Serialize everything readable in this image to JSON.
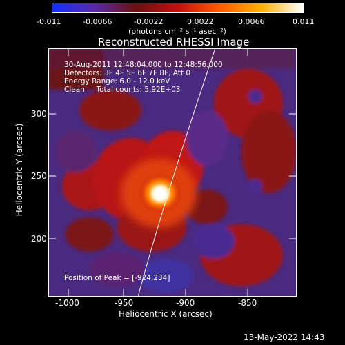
{
  "colorbar": {
    "min_label": "-0.011",
    "ticks": [
      "-0.0066",
      "-0.0022",
      "0.0022",
      "0.0066"
    ],
    "max_label": "0.011",
    "units_line": "(photons cm⁻² s⁻¹ asec⁻²)",
    "stops": [
      "#1030ff",
      "#5a2aa8",
      "#6a1010",
      "#c01010",
      "#ff5a00",
      "#ffb000",
      "#ffffff"
    ]
  },
  "plot": {
    "title": "Reconstructed RHESSI Image",
    "info_lines": [
      "30-Aug-2011 12:48:04.000 to 12:48:56.000",
      "Detectors: 3F 4F 5F 6F 7F 8F, Att 0",
      "Energy Range: 6.0 - 12.0 keV",
      "Clean     Total counts: 5.92E+03"
    ],
    "peak_text": "Position of Peak = [-924,234]",
    "x_axis_label": "Heliocentric X (arcsec)",
    "y_axis_label": "Heliocentric Y (arcsec)",
    "x_ticks": [
      "-1000",
      "-950",
      "-900",
      "-850"
    ],
    "y_ticks": [
      "300",
      "250",
      "200"
    ],
    "background_color": "#4a2a80"
  },
  "footer": {
    "timestamp": "13-May-2022 14:43"
  }
}
